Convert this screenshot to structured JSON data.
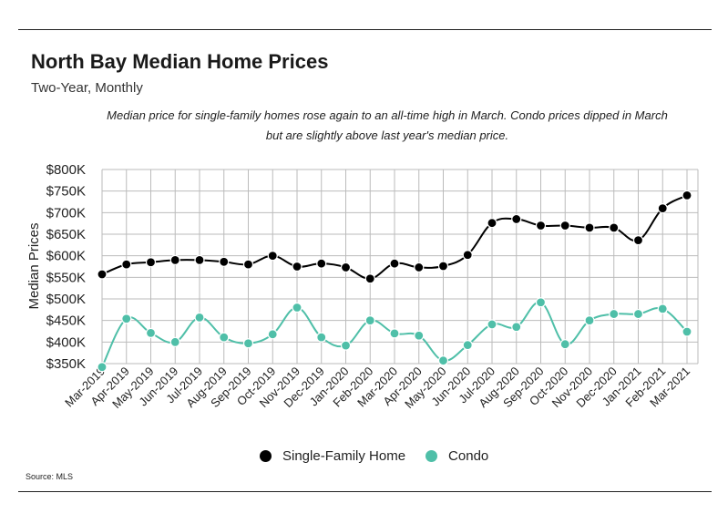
{
  "title": "North Bay Median Home Prices",
  "subtitle": "Two-Year, Monthly",
  "note": "Median price for single-family homes rose again to an all-time high in March. Condo prices dipped in March but are slightly above last year's median price.",
  "source": "Source:  MLS",
  "colors": {
    "single_family": "#000000",
    "condo": "#4fbfa8",
    "grid": "#bbbbbb"
  },
  "chart_data": {
    "type": "line",
    "ylabel": "Median Prices",
    "ylim": [
      350000,
      800000
    ],
    "yticks": [
      {
        "value": 350000,
        "label": "$350K"
      },
      {
        "value": 400000,
        "label": "$400K"
      },
      {
        "value": 450000,
        "label": "$450K"
      },
      {
        "value": 500000,
        "label": "$500K"
      },
      {
        "value": 550000,
        "label": "$550K"
      },
      {
        "value": 600000,
        "label": "$600K"
      },
      {
        "value": 650000,
        "label": "$650K"
      },
      {
        "value": 700000,
        "label": "$700K"
      },
      {
        "value": 750000,
        "label": "$750K"
      },
      {
        "value": 800000,
        "label": "$800K"
      }
    ],
    "categories": [
      "Mar-2019",
      "Apr-2019",
      "May-2019",
      "Jun-2019",
      "Jul-2019",
      "Aug-2019",
      "Sep-2019",
      "Oct-2019",
      "Nov-2019",
      "Dec-2019",
      "Jan-2020",
      "Feb-2020",
      "Mar-2020",
      "Apr-2020",
      "May-2020",
      "Jun-2020",
      "Jul-2020",
      "Aug-2020",
      "Sep-2020",
      "Oct-2020",
      "Nov-2020",
      "Dec-2020",
      "Jan-2021",
      "Feb-2021",
      "Mar-2021"
    ],
    "grid": true,
    "legend_position": "bottom-center",
    "series": [
      {
        "name": "Single-Family Home",
        "color": "#000000",
        "values": [
          557000,
          580000,
          585000,
          590000,
          590000,
          586000,
          580000,
          600000,
          575000,
          582000,
          573000,
          547000,
          582000,
          573000,
          576000,
          602000,
          676000,
          685000,
          670000,
          670000,
          665000,
          665000,
          636000,
          710000,
          740000
        ]
      },
      {
        "name": "Condo",
        "color": "#4fbfa8",
        "values": [
          342000,
          454000,
          421000,
          400000,
          457000,
          411000,
          397000,
          418000,
          480000,
          411000,
          392000,
          450000,
          420000,
          415000,
          357000,
          393000,
          441000,
          435000,
          492000,
          395000,
          450000,
          465000,
          465000,
          477000,
          424000
        ]
      }
    ]
  }
}
